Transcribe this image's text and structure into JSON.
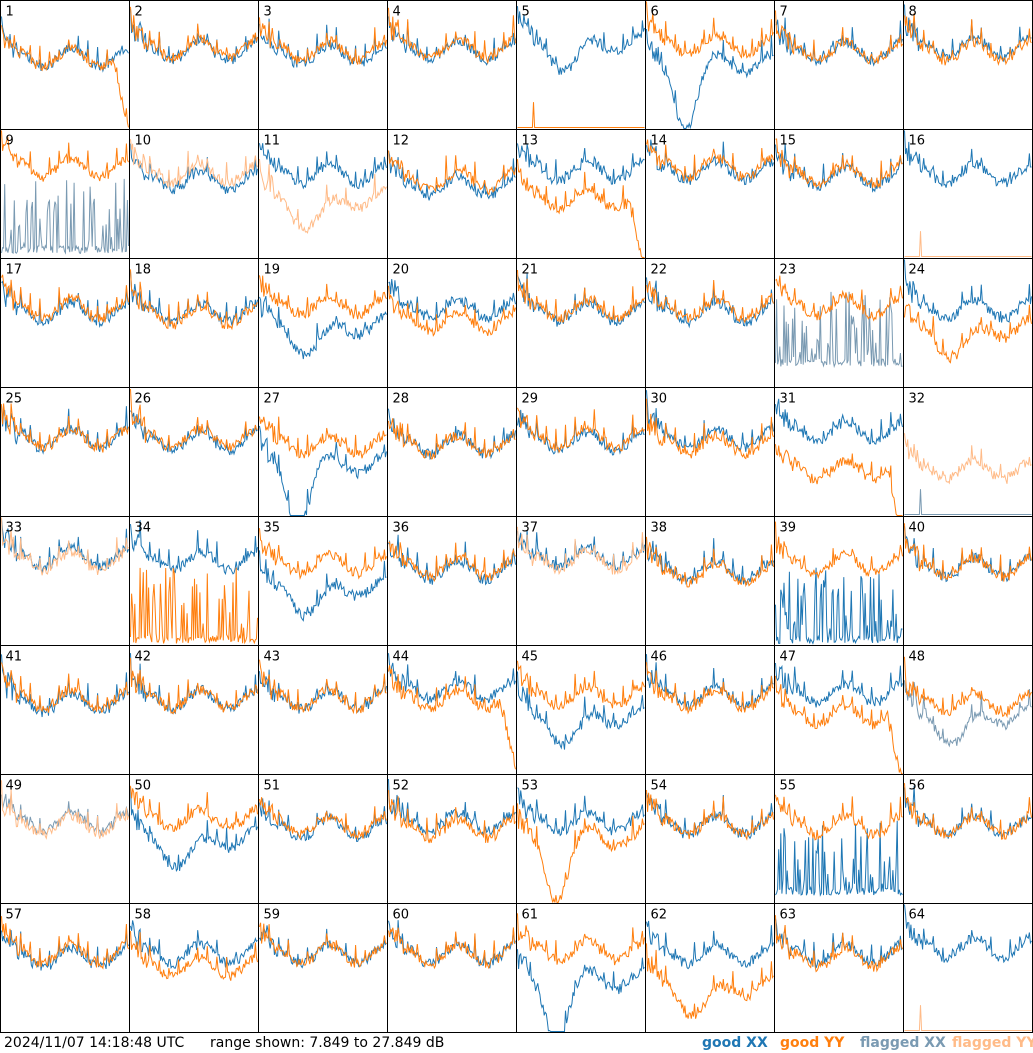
{
  "footer": {
    "timestamp": "2024/11/07 14:18:48 UTC",
    "range_text": "range shown: 7.849 to 27.849 dB",
    "legend": [
      {
        "prefix": "good ",
        "pol": "XX",
        "color": "#1f77b4"
      },
      {
        "prefix": "good ",
        "pol": "YY",
        "color": "#ff7f0e"
      },
      {
        "prefix": "flagged ",
        "pol": "XX",
        "color": "#7a9ab2"
      },
      {
        "prefix": "flagged ",
        "pol": "YY",
        "color": "#ffbb88"
      }
    ]
  },
  "chart_data": {
    "type": "line",
    "layout": "small-multiples 8x8",
    "y_range_db": [
      7.849,
      27.849
    ],
    "colors": {
      "good_xx": "#1f77b4",
      "good_yy": "#ff7f0e",
      "flagged_xx": "#7a9ab2",
      "flagged_yy": "#ffbb88"
    },
    "panels": [
      {
        "label": "1",
        "xx": "good",
        "yy": "good",
        "xx_level": 19,
        "yy_level": 19,
        "xx_anom": "none",
        "yy_anom": "rolloff"
      },
      {
        "label": "2",
        "xx": "good",
        "yy": "good",
        "xx_level": 20,
        "yy_level": 20.5,
        "xx_anom": "none",
        "yy_anom": "none"
      },
      {
        "label": "3",
        "xx": "good",
        "yy": "good",
        "xx_level": 19.5,
        "yy_level": 20,
        "xx_anom": "none",
        "yy_anom": "none"
      },
      {
        "label": "4",
        "xx": "good",
        "yy": "good",
        "xx_level": 20,
        "yy_level": 20.5,
        "xx_anom": "none",
        "yy_anom": "none"
      },
      {
        "label": "5",
        "xx": "good",
        "yy": "good",
        "xx_level": 21.5,
        "yy_level": 8,
        "xx_anom": "dip",
        "yy_anom": "flatlow"
      },
      {
        "label": "6",
        "xx": "good",
        "yy": "good",
        "xx_level": 18,
        "yy_level": 21,
        "xx_anom": "deepdip",
        "yy_anom": "none"
      },
      {
        "label": "7",
        "xx": "good",
        "yy": "good",
        "xx_level": 20,
        "yy_level": 20,
        "xx_anom": "none",
        "yy_anom": "none"
      },
      {
        "label": "8",
        "xx": "good",
        "yy": "good",
        "xx_level": 20.5,
        "yy_level": 20,
        "xx_anom": "none",
        "yy_anom": "none"
      },
      {
        "label": "9",
        "xx": "flagged",
        "yy": "good",
        "xx_level": 8.5,
        "yy_level": 22,
        "xx_anom": "spikes",
        "yy_anom": "none"
      },
      {
        "label": "10",
        "xx": "good",
        "yy": "flagged",
        "xx_level": 20,
        "yy_level": 21,
        "xx_anom": "none",
        "yy_anom": "none"
      },
      {
        "label": "11",
        "xx": "good",
        "yy": "flagged",
        "xx_level": 21,
        "yy_level": 17,
        "xx_anom": "none",
        "yy_anom": "dip"
      },
      {
        "label": "12",
        "xx": "good",
        "yy": "good",
        "xx_level": 19,
        "yy_level": 20,
        "xx_anom": "none",
        "yy_anom": "none"
      },
      {
        "label": "13",
        "xx": "good",
        "yy": "good",
        "xx_level": 21.5,
        "yy_level": 17,
        "xx_anom": "none",
        "yy_anom": "rolloff"
      },
      {
        "label": "14",
        "xx": "good",
        "yy": "good",
        "xx_level": 21.5,
        "yy_level": 22,
        "xx_anom": "none",
        "yy_anom": "none"
      },
      {
        "label": "15",
        "xx": "good",
        "yy": "good",
        "xx_level": 20.5,
        "yy_level": 21,
        "xx_anom": "none",
        "yy_anom": "none"
      },
      {
        "label": "16",
        "xx": "good",
        "yy": "flagged",
        "xx_level": 21,
        "yy_level": 8,
        "xx_anom": "none",
        "yy_anom": "flatlow"
      },
      {
        "label": "17",
        "xx": "good",
        "yy": "good",
        "xx_level": 19.5,
        "yy_level": 20,
        "xx_anom": "none",
        "yy_anom": "none"
      },
      {
        "label": "18",
        "xx": "good",
        "yy": "good",
        "xx_level": 19.5,
        "yy_level": 19,
        "xx_anom": "none",
        "yy_anom": "none"
      },
      {
        "label": "19",
        "xx": "good",
        "yy": "good",
        "xx_level": 17.5,
        "yy_level": 20.5,
        "xx_anom": "dip",
        "yy_anom": "none"
      },
      {
        "label": "20",
        "xx": "good",
        "yy": "good",
        "xx_level": 20,
        "yy_level": 18,
        "xx_anom": "none",
        "yy_anom": "none"
      },
      {
        "label": "21",
        "xx": "good",
        "yy": "good",
        "xx_level": 19.5,
        "yy_level": 20,
        "xx_anom": "none",
        "yy_anom": "none"
      },
      {
        "label": "22",
        "xx": "good",
        "yy": "good",
        "xx_level": 19.5,
        "yy_level": 20,
        "xx_anom": "none",
        "yy_anom": "none"
      },
      {
        "label": "23",
        "xx": "flagged",
        "yy": "good",
        "xx_level": 11,
        "yy_level": 20.5,
        "xx_anom": "spikes",
        "yy_anom": "none"
      },
      {
        "label": "24",
        "xx": "good",
        "yy": "good",
        "xx_level": 20,
        "yy_level": 17,
        "xx_anom": "none",
        "yy_anom": "dip"
      },
      {
        "label": "25",
        "xx": "good",
        "yy": "good",
        "xx_level": 20,
        "yy_level": 20,
        "xx_anom": "none",
        "yy_anom": "none"
      },
      {
        "label": "26",
        "xx": "good",
        "yy": "good",
        "xx_level": 19.5,
        "yy_level": 20,
        "xx_anom": "none",
        "yy_anom": "none"
      },
      {
        "label": "27",
        "xx": "good",
        "yy": "good",
        "xx_level": 16,
        "yy_level": 19,
        "xx_anom": "deepdip",
        "yy_anom": "none"
      },
      {
        "label": "28",
        "xx": "good",
        "yy": "good",
        "xx_level": 19,
        "yy_level": 19,
        "xx_anom": "none",
        "yy_anom": "none"
      },
      {
        "label": "29",
        "xx": "good",
        "yy": "good",
        "xx_level": 19.5,
        "yy_level": 20,
        "xx_anom": "none",
        "yy_anom": "none"
      },
      {
        "label": "30",
        "xx": "good",
        "yy": "good",
        "xx_level": 20,
        "yy_level": 19,
        "xx_anom": "none",
        "yy_anom": "none"
      },
      {
        "label": "31",
        "xx": "good",
        "yy": "good",
        "xx_level": 21,
        "yy_level": 15,
        "xx_anom": "none",
        "yy_anom": "rolloff"
      },
      {
        "label": "32",
        "xx": "flagged",
        "yy": "flagged",
        "xx_level": 8,
        "yy_level": 15,
        "xx_anom": "flatlow",
        "yy_anom": "none"
      },
      {
        "label": "33",
        "xx": "good",
        "yy": "flagged",
        "xx_level": 21.5,
        "yy_level": 21,
        "xx_anom": "none",
        "yy_anom": "none"
      },
      {
        "label": "34",
        "xx": "good",
        "yy": "good",
        "xx_level": 21,
        "yy_level": 8,
        "xx_anom": "none",
        "yy_anom": "spikes"
      },
      {
        "label": "35",
        "xx": "good",
        "yy": "good",
        "xx_level": 17,
        "yy_level": 20.5,
        "xx_anom": "dip",
        "yy_anom": "none"
      },
      {
        "label": "36",
        "xx": "good",
        "yy": "good",
        "xx_level": 19.5,
        "yy_level": 20,
        "xx_anom": "none",
        "yy_anom": "none"
      },
      {
        "label": "37",
        "xx": "good",
        "yy": "flagged",
        "xx_level": 21.5,
        "yy_level": 21,
        "xx_anom": "none",
        "yy_anom": "none"
      },
      {
        "label": "38",
        "xx": "good",
        "yy": "good",
        "xx_level": 19.5,
        "yy_level": 19,
        "xx_anom": "none",
        "yy_anom": "none"
      },
      {
        "label": "39",
        "xx": "good",
        "yy": "good",
        "xx_level": 8,
        "yy_level": 20.5,
        "xx_anom": "spikes",
        "yy_anom": "none"
      },
      {
        "label": "40",
        "xx": "good",
        "yy": "good",
        "xx_level": 20,
        "yy_level": 20,
        "xx_anom": "none",
        "yy_anom": "none"
      },
      {
        "label": "41",
        "xx": "good",
        "yy": "good",
        "xx_level": 19,
        "yy_level": 19.5,
        "xx_anom": "none",
        "yy_anom": "none"
      },
      {
        "label": "42",
        "xx": "good",
        "yy": "good",
        "xx_level": 19.5,
        "yy_level": 19.5,
        "xx_anom": "none",
        "yy_anom": "none"
      },
      {
        "label": "43",
        "xx": "good",
        "yy": "good",
        "xx_level": 19.5,
        "yy_level": 19.5,
        "xx_anom": "none",
        "yy_anom": "none"
      },
      {
        "label": "44",
        "xx": "good",
        "yy": "good",
        "xx_level": 21,
        "yy_level": 19.5,
        "xx_anom": "none",
        "yy_anom": "rolloff"
      },
      {
        "label": "45",
        "xx": "good",
        "yy": "good",
        "xx_level": 17,
        "yy_level": 20,
        "xx_anom": "dip",
        "yy_anom": "none"
      },
      {
        "label": "46",
        "xx": "good",
        "yy": "good",
        "xx_level": 20,
        "yy_level": 19.5,
        "xx_anom": "none",
        "yy_anom": "none"
      },
      {
        "label": "47",
        "xx": "good",
        "yy": "good",
        "xx_level": 20.5,
        "yy_level": 17,
        "xx_anom": "none",
        "yy_anom": "rolloff"
      },
      {
        "label": "48",
        "xx": "flagged",
        "yy": "good",
        "xx_level": 17,
        "yy_level": 19,
        "xx_anom": "dip",
        "yy_anom": "none"
      },
      {
        "label": "49",
        "xx": "flagged",
        "yy": "flagged",
        "xx_level": 20.5,
        "yy_level": 20,
        "xx_anom": "none",
        "yy_anom": "none"
      },
      {
        "label": "50",
        "xx": "good",
        "yy": "good",
        "xx_level": 18,
        "yy_level": 21,
        "xx_anom": "dip",
        "yy_anom": "none"
      },
      {
        "label": "51",
        "xx": "good",
        "yy": "good",
        "xx_level": 19.5,
        "yy_level": 20,
        "xx_anom": "none",
        "yy_anom": "none"
      },
      {
        "label": "52",
        "xx": "good",
        "yy": "good",
        "xx_level": 20.5,
        "yy_level": 19.5,
        "xx_anom": "none",
        "yy_anom": "none"
      },
      {
        "label": "53",
        "xx": "good",
        "yy": "good",
        "xx_level": 20.5,
        "yy_level": 18,
        "xx_anom": "none",
        "yy_anom": "deepdip"
      },
      {
        "label": "54",
        "xx": "good",
        "yy": "good",
        "xx_level": 20,
        "yy_level": 20,
        "xx_anom": "none",
        "yy_anom": "none"
      },
      {
        "label": "55",
        "xx": "good",
        "yy": "good",
        "xx_level": 9,
        "yy_level": 20,
        "xx_anom": "spikes",
        "yy_anom": "none"
      },
      {
        "label": "56",
        "xx": "good",
        "yy": "good",
        "xx_level": 20,
        "yy_level": 20,
        "xx_anom": "none",
        "yy_anom": "none"
      },
      {
        "label": "57",
        "xx": "good",
        "yy": "good",
        "xx_level": 19.5,
        "yy_level": 20,
        "xx_anom": "none",
        "yy_anom": "none"
      },
      {
        "label": "58",
        "xx": "good",
        "yy": "good",
        "xx_level": 20,
        "yy_level": 18,
        "xx_anom": "none",
        "yy_anom": "none"
      },
      {
        "label": "59",
        "xx": "good",
        "yy": "good",
        "xx_level": 20,
        "yy_level": 20,
        "xx_anom": "none",
        "yy_anom": "none"
      },
      {
        "label": "60",
        "xx": "good",
        "yy": "good",
        "xx_level": 20,
        "yy_level": 20,
        "xx_anom": "none",
        "yy_anom": "none"
      },
      {
        "label": "61",
        "xx": "good",
        "yy": "good",
        "xx_level": 16,
        "yy_level": 20.5,
        "xx_anom": "deepdip",
        "yy_anom": "none"
      },
      {
        "label": "62",
        "xx": "good",
        "yy": "good",
        "xx_level": 20,
        "yy_level": 15,
        "xx_anom": "none",
        "yy_anom": "dip"
      },
      {
        "label": "63",
        "xx": "good",
        "yy": "good",
        "xx_level": 20,
        "yy_level": 19.5,
        "xx_anom": "none",
        "yy_anom": "none"
      },
      {
        "label": "64",
        "xx": "good",
        "yy": "flagged",
        "xx_level": 21,
        "yy_level": 8,
        "xx_anom": "none",
        "yy_anom": "flatlow"
      }
    ]
  }
}
